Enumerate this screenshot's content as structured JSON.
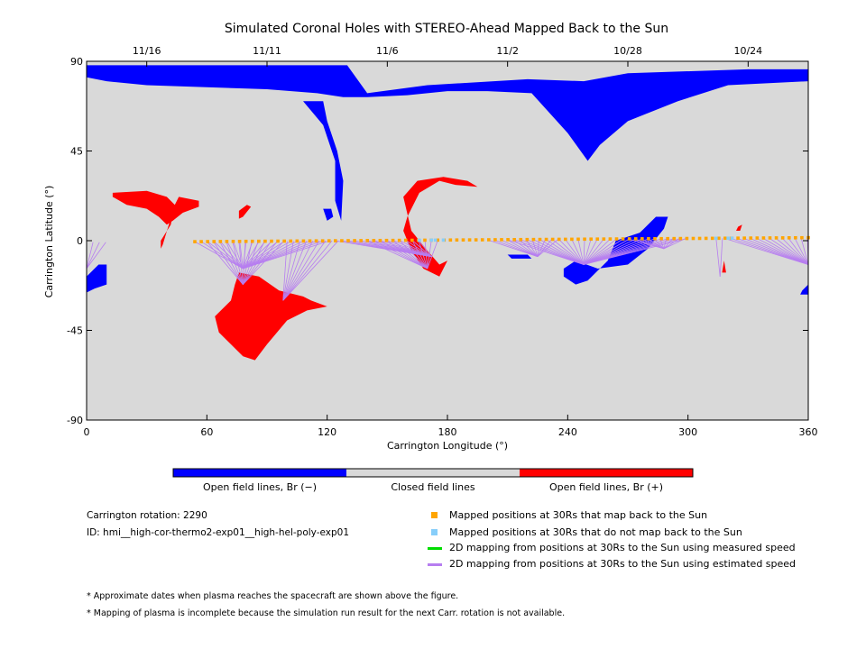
{
  "chart_data": {
    "type": "scatter",
    "title": "Simulated Coronal Holes with STEREO-Ahead Mapped Back to the Sun",
    "xlabel": "Carrington Longitude (°)",
    "ylabel": "Carrington Latitude (°)",
    "xlim": [
      0,
      360
    ],
    "ylim": [
      -90,
      90
    ],
    "x_ticks": [
      0,
      60,
      120,
      180,
      240,
      300,
      360
    ],
    "y_ticks": [
      -90,
      -45,
      0,
      45,
      90
    ],
    "top_date_ticks": [
      {
        "lon": 30,
        "label": "11/16"
      },
      {
        "lon": 90,
        "label": "11/11"
      },
      {
        "lon": 150,
        "label": "11/6"
      },
      {
        "lon": 210,
        "label": "11/2"
      },
      {
        "lon": 270,
        "label": "10/28"
      },
      {
        "lon": 330,
        "label": "10/24"
      }
    ],
    "background_color": "#d9d9d9",
    "neg_color": "#0000ff",
    "pos_color": "#ff0000",
    "mapped_color": "#ffa500",
    "unmapped_color": "#87cefa",
    "estimated_line_color": "#b77ef0",
    "measured_line_color": "#00dd00",
    "regions_negative": [
      [
        [
          0,
          82
        ],
        [
          0,
          88
        ],
        [
          130,
          88
        ],
        [
          140,
          74
        ],
        [
          170,
          78
        ],
        [
          220,
          81
        ],
        [
          248,
          80
        ],
        [
          270,
          84
        ],
        [
          330,
          86
        ],
        [
          360,
          86
        ],
        [
          360,
          80
        ],
        [
          320,
          78
        ],
        [
          295,
          70
        ],
        [
          270,
          60
        ],
        [
          256,
          48
        ],
        [
          250,
          40
        ],
        [
          240,
          54
        ],
        [
          222,
          74
        ],
        [
          200,
          75
        ],
        [
          180,
          75
        ],
        [
          160,
          73
        ],
        [
          140,
          72
        ],
        [
          128,
          72
        ],
        [
          115,
          74
        ],
        [
          90,
          76
        ],
        [
          30,
          78
        ],
        [
          10,
          80
        ]
      ],
      [
        [
          108,
          70
        ],
        [
          118,
          70
        ],
        [
          120,
          60
        ],
        [
          125,
          45
        ],
        [
          128,
          30
        ],
        [
          127,
          10
        ],
        [
          124,
          20
        ],
        [
          124,
          40
        ],
        [
          118,
          58
        ]
      ],
      [
        [
          0,
          -18
        ],
        [
          6,
          -12
        ],
        [
          10,
          -12
        ],
        [
          10,
          -22
        ],
        [
          4,
          -24
        ],
        [
          0,
          -26
        ]
      ],
      [
        [
          238,
          -14
        ],
        [
          244,
          -10
        ],
        [
          255,
          -14
        ],
        [
          270,
          -12
        ],
        [
          280,
          -4
        ],
        [
          288,
          6
        ],
        [
          290,
          12
        ],
        [
          284,
          12
        ],
        [
          276,
          4
        ],
        [
          264,
          0
        ],
        [
          260,
          -10
        ],
        [
          250,
          -20
        ],
        [
          244,
          -22
        ],
        [
          238,
          -18
        ]
      ],
      [
        [
          210,
          -7
        ],
        [
          220,
          -7
        ],
        [
          222,
          -9
        ],
        [
          212,
          -9
        ]
      ],
      [
        [
          357,
          -25
        ],
        [
          360,
          -22
        ],
        [
          360,
          -27
        ],
        [
          356,
          -27
        ]
      ],
      [
        [
          118,
          16
        ],
        [
          122,
          16
        ],
        [
          123,
          12
        ],
        [
          120,
          10
        ]
      ]
    ],
    "regions_positive": [
      [
        [
          13,
          24
        ],
        [
          30,
          25
        ],
        [
          40,
          22
        ],
        [
          44,
          18
        ],
        [
          42,
          8
        ],
        [
          37,
          0
        ],
        [
          37,
          -4
        ],
        [
          38,
          -2
        ],
        [
          44,
          18
        ],
        [
          46,
          22
        ],
        [
          56,
          20
        ],
        [
          56,
          17
        ],
        [
          48,
          14
        ],
        [
          43,
          10
        ],
        [
          40,
          8
        ],
        [
          36,
          12
        ],
        [
          30,
          16
        ],
        [
          20,
          18
        ],
        [
          13,
          22
        ]
      ],
      [
        [
          76,
          15
        ],
        [
          80,
          18
        ],
        [
          82,
          17
        ],
        [
          78,
          12
        ],
        [
          76,
          11
        ]
      ],
      [
        [
          160,
          12
        ],
        [
          166,
          24
        ],
        [
          176,
          30
        ],
        [
          184,
          28
        ],
        [
          195,
          27
        ],
        [
          190,
          30
        ],
        [
          178,
          32
        ],
        [
          165,
          30
        ],
        [
          158,
          22
        ],
        [
          162,
          5
        ],
        [
          170,
          -5
        ],
        [
          176,
          -12
        ],
        [
          180,
          -10
        ],
        [
          176,
          -18
        ],
        [
          168,
          -14
        ],
        [
          162,
          -5
        ],
        [
          158,
          5
        ]
      ],
      [
        [
          76,
          -16
        ],
        [
          86,
          -18
        ],
        [
          96,
          -25
        ],
        [
          108,
          -28
        ],
        [
          112,
          -30
        ],
        [
          120,
          -33
        ],
        [
          110,
          -35
        ],
        [
          100,
          -40
        ],
        [
          90,
          -52
        ],
        [
          84,
          -60
        ],
        [
          78,
          -58
        ],
        [
          72,
          -52
        ],
        [
          66,
          -46
        ],
        [
          64,
          -38
        ],
        [
          72,
          -30
        ],
        [
          74,
          -22
        ]
      ],
      [
        [
          325,
          7
        ],
        [
          327,
          8
        ],
        [
          326,
          5
        ],
        [
          324,
          5
        ]
      ],
      [
        [
          317,
          -16
        ],
        [
          318,
          -10
        ],
        [
          319,
          -16
        ]
      ]
    ],
    "mapped_points": {
      "lon_start": 54,
      "lon_end": 360,
      "lat_start": -0.5,
      "lat_end": 1.5,
      "count": 97
    },
    "unmapped_points_lon": [
      166,
      172,
      174,
      178,
      314,
      320,
      322
    ],
    "estimated_speed_fans": [
      {
        "foot": [
          78,
          -14
        ],
        "src_from": 54,
        "src_to": 122
      },
      {
        "foot": [
          78,
          -22
        ],
        "src_from": 60,
        "src_to": 100
      },
      {
        "foot": [
          98,
          -30
        ],
        "src_from": 100,
        "src_to": 126
      },
      {
        "foot": [
          170,
          -14
        ],
        "src_from": 140,
        "src_to": 178
      },
      {
        "foot": [
          172,
          -8
        ],
        "src_from": 124,
        "src_to": 168
      },
      {
        "foot": [
          248,
          -12
        ],
        "src_from": 210,
        "src_to": 300
      },
      {
        "foot": [
          225,
          -8
        ],
        "src_from": 200,
        "src_to": 236
      },
      {
        "foot": [
          288,
          -4
        ],
        "src_from": 270,
        "src_to": 300
      },
      {
        "foot": [
          316,
          -18
        ],
        "src_from": 314,
        "src_to": 320
      },
      {
        "foot": [
          360,
          -12
        ],
        "src_from": 318,
        "src_to": 360
      },
      {
        "foot": [
          0,
          -14
        ],
        "src_from": 0,
        "src_to": 10
      }
    ],
    "colorbar": {
      "segments": [
        {
          "color": "#0000ff",
          "label": "Open field lines, Br (−)"
        },
        {
          "color": "#d9d9d9",
          "label": "Closed field lines"
        },
        {
          "color": "#ff0000",
          "label": "Open field lines, Br (+)"
        }
      ]
    },
    "legend": [
      {
        "marker": "square",
        "color": "#ffa500",
        "label": "Mapped positions at 30Rs that map back to the Sun"
      },
      {
        "marker": "square",
        "color": "#87cefa",
        "label": "Mapped positions at 30Rs that do not map back to the Sun"
      },
      {
        "marker": "line",
        "color": "#00dd00",
        "label": "2D mapping from positions at 30Rs to the Sun using measured speed"
      },
      {
        "marker": "line",
        "color": "#b77ef0",
        "label": "2D mapping from positions at 30Rs to the Sun using estimated speed"
      }
    ]
  },
  "info": {
    "rotation": "Carrington rotation: 2290",
    "id": "ID: hmi__high-cor-thermo2-exp01__high-hel-poly-exp01"
  },
  "notes": [
    "* Approximate dates when plasma reaches the spacecraft are shown above the figure.",
    "* Mapping of plasma is incomplete because the simulation run result for the next Carr. rotation is not available."
  ]
}
